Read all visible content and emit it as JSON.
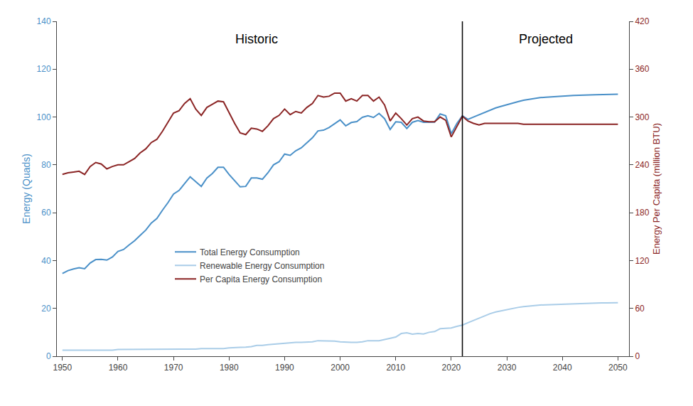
{
  "chart_data": {
    "type": "line",
    "x": [
      1950,
      1951,
      1952,
      1953,
      1954,
      1955,
      1956,
      1957,
      1958,
      1959,
      1960,
      1961,
      1962,
      1963,
      1964,
      1965,
      1966,
      1967,
      1968,
      1969,
      1970,
      1971,
      1972,
      1973,
      1974,
      1975,
      1976,
      1977,
      1978,
      1979,
      1980,
      1981,
      1982,
      1983,
      1984,
      1985,
      1986,
      1987,
      1988,
      1989,
      1990,
      1991,
      1992,
      1993,
      1994,
      1995,
      1996,
      1997,
      1998,
      1999,
      2000,
      2001,
      2002,
      2003,
      2004,
      2005,
      2006,
      2007,
      2008,
      2009,
      2010,
      2011,
      2012,
      2013,
      2014,
      2015,
      2016,
      2017,
      2018,
      2019,
      2020,
      2021,
      2022,
      2023,
      2024,
      2025,
      2026,
      2027,
      2028,
      2029,
      2030,
      2031,
      2032,
      2033,
      2034,
      2035,
      2036,
      2037,
      2038,
      2039,
      2040,
      2041,
      2042,
      2043,
      2044,
      2045,
      2046,
      2047,
      2048,
      2049,
      2050
    ],
    "series": [
      {
        "name": "Total Energy Consumption",
        "color": "#4a90c8",
        "values": [
          34.6,
          35.8,
          36.5,
          37.0,
          36.6,
          39.0,
          40.4,
          40.5,
          40.2,
          41.5,
          43.8,
          44.6,
          46.5,
          48.3,
          50.5,
          52.7,
          55.7,
          57.6,
          61.0,
          64.2,
          67.8,
          69.3,
          72.2,
          75.0,
          73.0,
          71.0,
          74.5,
          76.4,
          79.0,
          79.0,
          76.0,
          73.5,
          70.8,
          71.0,
          74.5,
          74.5,
          74.0,
          76.7,
          80.0,
          81.3,
          84.5,
          84.0,
          85.9,
          87.1,
          89.3,
          91.3,
          94.2,
          94.5,
          95.6,
          97.2,
          98.8,
          96.3,
          97.7,
          98.1,
          99.9,
          100.5,
          99.8,
          101.5,
          99.3,
          94.8,
          98.0,
          97.8,
          95.2,
          97.8,
          98.5,
          97.8,
          97.9,
          97.9,
          101.3,
          100.5,
          93.0,
          97.3,
          100.5,
          99.0,
          100.0,
          101.0,
          102.0,
          103.0,
          103.8,
          104.5,
          105.2,
          105.8,
          106.4,
          107.0,
          107.4,
          107.8,
          108.1,
          108.3,
          108.5,
          108.6,
          108.8,
          108.9,
          109.0,
          109.0,
          109.1,
          109.2,
          109.3,
          109.4,
          109.4,
          109.5,
          109.5
        ]
      },
      {
        "name": "Renewable Energy Consumption",
        "color": "#aacde8",
        "values": [
          2.5,
          2.5,
          2.5,
          2.5,
          2.5,
          2.5,
          2.5,
          2.5,
          2.5,
          2.5,
          2.8,
          2.8,
          2.8,
          2.8,
          2.8,
          2.8,
          2.8,
          2.8,
          2.8,
          2.8,
          2.8,
          2.8,
          3.0,
          3.0,
          3.0,
          3.2,
          3.2,
          3.2,
          3.2,
          3.2,
          3.5,
          3.5,
          3.7,
          3.8,
          4.0,
          4.5,
          4.5,
          4.8,
          5.0,
          5.3,
          5.5,
          5.8,
          5.8,
          5.8,
          5.8,
          6.0,
          6.5,
          6.5,
          6.5,
          6.3,
          6.0,
          5.8,
          5.8,
          5.8,
          6.0,
          6.5,
          6.5,
          6.5,
          7.0,
          7.5,
          8.0,
          9.5,
          9.8,
          9.2,
          9.5,
          9.3,
          10.0,
          10.3,
          11.5,
          11.7,
          11.8,
          12.5,
          13.0,
          14.0,
          15.0,
          16.0,
          17.0,
          17.8,
          18.5,
          19.0,
          19.5,
          20.0,
          20.4,
          20.7,
          21.0,
          21.2,
          21.4,
          21.5,
          21.6,
          21.7,
          21.8,
          21.9,
          22.0,
          22.0,
          22.1,
          22.2,
          22.2,
          22.3,
          22.3,
          22.4,
          22.4
        ]
      },
      {
        "name": "Per Capita Energy Consumption",
        "color": "#8b2525",
        "axis": "y2",
        "values": [
          228,
          230,
          231,
          232,
          228,
          238,
          243,
          241,
          235,
          238,
          240,
          240,
          244,
          248,
          255,
          260,
          268,
          272,
          282,
          294,
          305,
          308,
          317,
          323,
          310,
          302,
          312,
          316,
          320,
          319,
          305,
          292,
          280,
          278,
          286,
          285,
          282,
          289,
          298,
          302,
          310,
          303,
          307,
          305,
          312,
          317,
          327,
          325,
          326,
          330,
          330,
          320,
          323,
          320,
          327,
          327,
          320,
          325,
          315,
          295,
          305,
          298,
          290,
          298,
          300,
          295,
          294,
          294,
          300,
          296,
          275,
          288,
          301,
          295,
          292,
          290,
          292,
          292,
          292,
          292,
          292,
          292,
          292,
          291,
          291,
          291,
          291,
          291,
          291,
          291,
          291,
          291,
          291,
          291,
          291,
          291,
          291,
          291,
          291,
          291,
          291
        ]
      }
    ],
    "ylabel": "Energy (Quads)",
    "y2label": "Energy Per Capita (million BTU)",
    "xlim": [
      1949,
      2052
    ],
    "xticks": [
      1950,
      1960,
      1970,
      1980,
      1990,
      2000,
      2010,
      2020,
      2030,
      2040,
      2050
    ],
    "ylim": [
      0,
      140
    ],
    "yticks": [
      0,
      20,
      40,
      60,
      80,
      100,
      120,
      140
    ],
    "y2lim": [
      0,
      420
    ],
    "y2ticks": [
      0,
      60,
      120,
      180,
      240,
      300,
      360,
      420
    ],
    "vline": 2022,
    "annotations": [
      {
        "text": "Historic",
        "x": 1985,
        "y": 136
      },
      {
        "text": "Projected",
        "x": 2037,
        "y": 136
      }
    ],
    "legend": "lower left",
    "grid": false
  }
}
